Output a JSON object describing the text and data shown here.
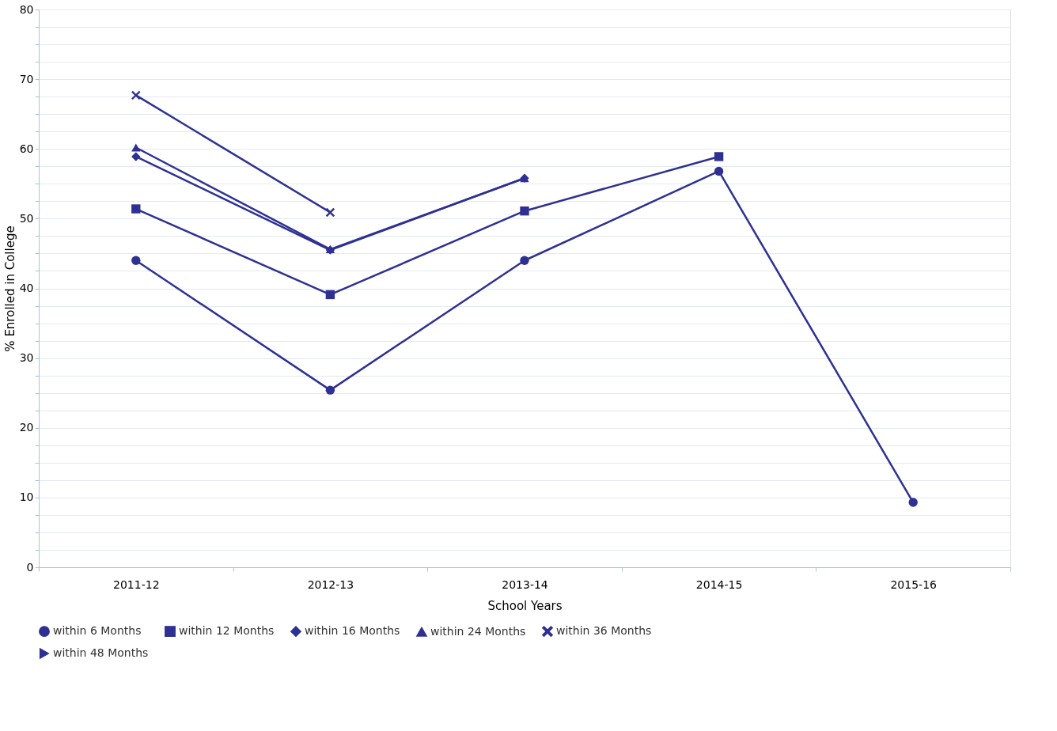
{
  "chart_data": {
    "type": "line",
    "xlabel": "School Years",
    "ylabel": "% Enrolled in College",
    "categories": [
      "2011-12",
      "2012-13",
      "2013-14",
      "2014-15",
      "2015-16"
    ],
    "series": [
      {
        "name": "within 6 Months",
        "color": "#2e3192",
        "marker": "circle",
        "values": [
          44.0,
          25.4,
          44.0,
          56.8,
          9.3
        ]
      },
      {
        "name": "within 12 Months",
        "color": "#2e3192",
        "marker": "square",
        "values": [
          51.4,
          39.1,
          51.1,
          58.9,
          null
        ]
      },
      {
        "name": "within 16 Months",
        "color": "#2e3192",
        "marker": "diamond",
        "values": [
          58.9,
          45.5,
          55.8,
          null,
          null
        ]
      },
      {
        "name": "within 24 Months",
        "color": "#2e3192",
        "marker": "triangle",
        "values": [
          60.2,
          45.6,
          55.8,
          null,
          null
        ]
      },
      {
        "name": "within 36 Months",
        "color": "#2e3192",
        "marker": "cross",
        "values": [
          67.7,
          50.9,
          null,
          null,
          null
        ]
      },
      {
        "name": "within 48 Months",
        "color": "#2e3192",
        "marker": "triangle-right",
        "values": [
          null,
          null,
          null,
          null,
          null
        ]
      }
    ],
    "ylim": [
      0,
      80
    ],
    "yticks": [
      0,
      {
        "value": 2.5,
        "label": null
      },
      {
        "value": 5,
        "label": null
      },
      {
        "value": 7.5,
        "label": null
      },
      10,
      {
        "value": 12.5,
        "label": null
      },
      {
        "value": 15,
        "label": null
      },
      {
        "value": 17.5,
        "label": null
      },
      20,
      {
        "value": 22.5,
        "label": null
      },
      {
        "value": 25,
        "label": null
      },
      {
        "value": 27.5,
        "label": null
      },
      30,
      {
        "value": 32.5,
        "label": null
      },
      {
        "value": 35,
        "label": null
      },
      {
        "value": 37.5,
        "label": null
      },
      40,
      {
        "value": 42.5,
        "label": null
      },
      {
        "value": 45,
        "label": null
      },
      {
        "value": 47.5,
        "label": null
      },
      50,
      {
        "value": 52.5,
        "label": null
      },
      {
        "value": 55,
        "label": null
      },
      {
        "value": 57.5,
        "label": null
      },
      60,
      {
        "value": 62.5,
        "label": null
      },
      {
        "value": 65,
        "label": null
      },
      {
        "value": 67.5,
        "label": null
      },
      70,
      {
        "value": 72.5,
        "label": null
      },
      {
        "value": 75,
        "label": null
      },
      {
        "value": 77.5,
        "label": null
      },
      80
    ],
    "grid": "y",
    "legend": "bottom",
    "line_style": "solid"
  }
}
